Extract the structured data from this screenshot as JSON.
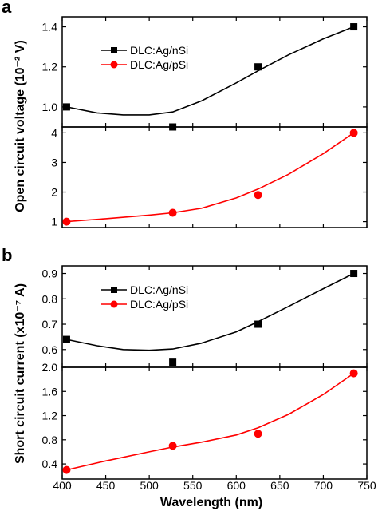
{
  "figure": {
    "panel_labels": [
      "a",
      "b"
    ],
    "x_axis_label": "Wavelength (nm)",
    "x_ticks": [
      400,
      450,
      500,
      550,
      600,
      650,
      700,
      750
    ]
  },
  "chart_data": [
    {
      "panel": "a",
      "type": "scatter",
      "ylabel": "Open circuit voltage (10⁻² V)",
      "subplots": [
        {
          "series": [
            {
              "name": "DLC:Ag/nSi",
              "color": "#000000",
              "marker": "square",
              "x": [
                405,
                527,
                625,
                735
              ],
              "y": [
                1.0,
                0.9,
                1.2,
                1.4
              ],
              "fit": {
                "x": [
                  405,
                  440,
                  470,
                  500,
                  527,
                  560,
                  600,
                  625,
                  660,
                  700,
                  735
                ],
                "y": [
                  1.0,
                  0.97,
                  0.96,
                  0.96,
                  0.975,
                  1.03,
                  1.12,
                  1.18,
                  1.26,
                  1.34,
                  1.4
                ]
              }
            }
          ],
          "ylim": [
            0.9,
            1.45
          ],
          "yticks": [
            "1.0",
            "1.2",
            "1.4"
          ],
          "ytick_values": [
            1.0,
            1.2,
            1.4
          ]
        },
        {
          "series": [
            {
              "name": "DLC:Ag/pSi",
              "color": "#ff0000",
              "marker": "circle",
              "x": [
                405,
                527,
                625,
                735
              ],
              "y": [
                1.0,
                1.3,
                1.9,
                4.0
              ],
              "fit": {
                "x": [
                  405,
                  450,
                  500,
                  527,
                  560,
                  600,
                  625,
                  660,
                  700,
                  735
                ],
                "y": [
                  1.0,
                  1.1,
                  1.22,
                  1.3,
                  1.45,
                  1.8,
                  2.1,
                  2.6,
                  3.3,
                  4.0
                ]
              }
            }
          ],
          "ylim": [
            0.8,
            4.2
          ],
          "yticks": [
            "1",
            "2",
            "3",
            "4"
          ],
          "ytick_values": [
            1,
            2,
            3,
            4
          ]
        }
      ],
      "legend": [
        "DLC:Ag/nSi",
        "DLC:Ag/pSi"
      ],
      "xlim": [
        400,
        750
      ]
    },
    {
      "panel": "b",
      "type": "scatter",
      "ylabel": "Short circuit current (x10⁻⁷ A)",
      "subplots": [
        {
          "series": [
            {
              "name": "DLC:Ag/nSi",
              "color": "#000000",
              "marker": "square",
              "x": [
                405,
                527,
                625,
                735
              ],
              "y": [
                0.64,
                0.55,
                0.7,
                0.9
              ],
              "fit": {
                "x": [
                  405,
                  440,
                  470,
                  500,
                  527,
                  560,
                  600,
                  625,
                  660,
                  700,
                  735
                ],
                "y": [
                  0.64,
                  0.615,
                  0.6,
                  0.597,
                  0.602,
                  0.625,
                  0.67,
                  0.71,
                  0.77,
                  0.84,
                  0.9
                ]
              }
            }
          ],
          "ylim": [
            0.53,
            0.93
          ],
          "yticks": [
            "0.6",
            "0.7",
            "0.8",
            "0.9"
          ],
          "ytick_values": [
            0.6,
            0.7,
            0.8,
            0.9
          ]
        },
        {
          "series": [
            {
              "name": "DLC:Ag/pSi",
              "color": "#ff0000",
              "marker": "circle",
              "x": [
                405,
                527,
                625,
                735
              ],
              "y": [
                0.3,
                0.7,
                0.9,
                1.9
              ],
              "fit": {
                "x": [
                  405,
                  450,
                  500,
                  527,
                  560,
                  600,
                  625,
                  660,
                  700,
                  735
                ],
                "y": [
                  0.3,
                  0.45,
                  0.6,
                  0.68,
                  0.76,
                  0.88,
                  1.0,
                  1.22,
                  1.55,
                  1.9
                ]
              }
            }
          ],
          "ylim": [
            0.15,
            2.0
          ],
          "yticks": [
            "0.4",
            "0.8",
            "1.2",
            "1.6",
            "2.0"
          ],
          "ytick_values": [
            0.4,
            0.8,
            1.2,
            1.6,
            2.0
          ]
        }
      ],
      "legend": [
        "DLC:Ag/nSi",
        "DLC:Ag/pSi"
      ],
      "xlim": [
        400,
        750
      ]
    }
  ]
}
